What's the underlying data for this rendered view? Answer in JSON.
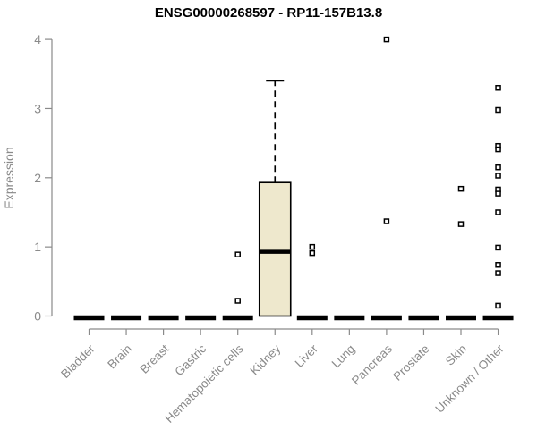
{
  "chart_data": {
    "type": "boxplot",
    "title": "ENSG00000268597 - RP11-157B13.8",
    "ylabel": "Expression",
    "xlabel": "",
    "ylim": [
      0,
      4
    ],
    "yticks": [
      0,
      1,
      2,
      3,
      4
    ],
    "grid": false,
    "legend": "none",
    "box_fill": "#EEE8CD",
    "axis_color": "#8A8A8A",
    "marker": "open-square",
    "categories": [
      "Bladder",
      "Brain",
      "Breast",
      "Gastric",
      "Hematopoietic cells",
      "Kidney",
      "Liver",
      "Lung",
      "Pancreas",
      "Prostate",
      "Skin",
      "Unknown / Other"
    ],
    "boxes": [
      {
        "category": "Bladder",
        "median": 0,
        "q1": 0,
        "q3": 0,
        "whisker_low": 0,
        "whisker_high": 0,
        "outliers": []
      },
      {
        "category": "Brain",
        "median": 0,
        "q1": 0,
        "q3": 0,
        "whisker_low": 0,
        "whisker_high": 0,
        "outliers": []
      },
      {
        "category": "Breast",
        "median": 0,
        "q1": 0,
        "q3": 0,
        "whisker_low": 0,
        "whisker_high": 0,
        "outliers": []
      },
      {
        "category": "Gastric",
        "median": 0,
        "q1": 0,
        "q3": 0,
        "whisker_low": 0,
        "whisker_high": 0,
        "outliers": []
      },
      {
        "category": "Hematopoietic cells",
        "median": 0,
        "q1": 0,
        "q3": 0,
        "whisker_low": 0,
        "whisker_high": 0,
        "outliers": [
          0.89,
          0.22
        ]
      },
      {
        "category": "Kidney",
        "median": 0.93,
        "q1": 0,
        "q3": 1.93,
        "whisker_low": 0,
        "whisker_high": 3.4,
        "outliers": []
      },
      {
        "category": "Liver",
        "median": 0,
        "q1": 0,
        "q3": 0,
        "whisker_low": 0,
        "whisker_high": 0,
        "outliers": [
          1.0,
          0.91
        ]
      },
      {
        "category": "Lung",
        "median": 0,
        "q1": 0,
        "q3": 0,
        "whisker_low": 0,
        "whisker_high": 0,
        "outliers": []
      },
      {
        "category": "Pancreas",
        "median": 0,
        "q1": 0,
        "q3": 0,
        "whisker_low": 0,
        "whisker_high": 0,
        "outliers": [
          4.0,
          1.37
        ]
      },
      {
        "category": "Prostate",
        "median": 0,
        "q1": 0,
        "q3": 0,
        "whisker_low": 0,
        "whisker_high": 0,
        "outliers": []
      },
      {
        "category": "Skin",
        "median": 0,
        "q1": 0,
        "q3": 0,
        "whisker_low": 0,
        "whisker_high": 0,
        "outliers": [
          1.84,
          1.33
        ]
      },
      {
        "category": "Unknown / Other",
        "median": 0,
        "q1": 0,
        "q3": 0,
        "whisker_low": 0,
        "whisker_high": 0,
        "outliers": [
          3.3,
          2.98,
          2.46,
          2.41,
          2.15,
          2.03,
          1.83,
          1.77,
          1.5,
          0.99,
          0.74,
          0.62,
          0.15
        ]
      }
    ]
  }
}
